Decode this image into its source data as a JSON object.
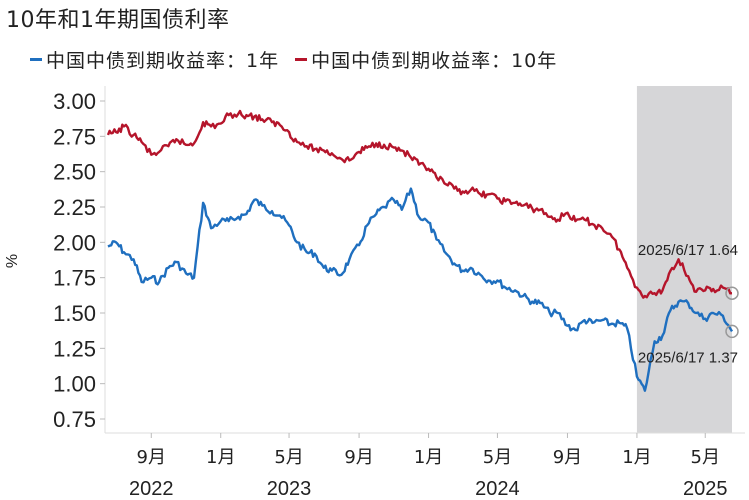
{
  "title": "10年和1年期国债利率",
  "legend": [
    {
      "label": "中国中债到期收益率：1年",
      "color": "#1f6fbf"
    },
    {
      "label": "中国中债到期收益率：10年",
      "color": "#b5152b"
    }
  ],
  "ylabel": "%",
  "shade_color": "#d6d6d8",
  "chart_data": {
    "type": "line",
    "title": "10年和1年期国债利率",
    "xlabel": "",
    "ylabel": "%",
    "ylim": [
      0.75,
      3.0
    ],
    "yticks": [
      "3.00",
      "2.75",
      "2.50",
      "2.25",
      "2.00",
      "1.75",
      "1.50",
      "1.25",
      "1.00",
      "0.75"
    ],
    "xticks": [
      {
        "label": "9月",
        "year": "2022",
        "date": "2022-09-01"
      },
      {
        "label": "1月",
        "year": "",
        "date": "2023-01-01"
      },
      {
        "label": "5月",
        "year": "2023",
        "date": "2023-05-01"
      },
      {
        "label": "9月",
        "year": "",
        "date": "2023-09-01"
      },
      {
        "label": "1月",
        "year": "",
        "date": "2024-01-01"
      },
      {
        "label": "5月",
        "year": "2024",
        "date": "2024-05-01"
      },
      {
        "label": "9月",
        "year": "",
        "date": "2024-09-01"
      },
      {
        "label": "1月",
        "year": "",
        "date": "2025-01-01"
      },
      {
        "label": "5月",
        "year": "2025",
        "date": "2025-05-01"
      }
    ],
    "x_range": [
      "2022-06-17",
      "2025-06-17"
    ],
    "shaded_region": [
      "2025-01-01",
      "2025-06-17"
    ],
    "grid": false,
    "legend_position": "top",
    "annotations": [
      {
        "text": "2025/6/17 1.64",
        "series": "中国中债到期收益率：10年",
        "date": "2025-06-17",
        "value": 1.64
      },
      {
        "text": "2025/6/17 1.37",
        "series": "中国中债到期收益率：1年",
        "date": "2025-06-17",
        "value": 1.37
      }
    ],
    "series": [
      {
        "name": "中国中债到期收益率：1年",
        "color": "#1f6fbf",
        "x": [
          "2022-06-17",
          "2022-07-01",
          "2022-07-15",
          "2022-08-01",
          "2022-08-15",
          "2022-09-01",
          "2022-09-15",
          "2022-10-01",
          "2022-10-15",
          "2022-11-01",
          "2022-11-15",
          "2022-12-01",
          "2022-12-15",
          "2023-01-01",
          "2023-01-15",
          "2023-02-01",
          "2023-02-15",
          "2023-03-01",
          "2023-03-15",
          "2023-04-01",
          "2023-04-15",
          "2023-05-01",
          "2023-05-15",
          "2023-06-01",
          "2023-06-15",
          "2023-07-01",
          "2023-07-15",
          "2023-08-01",
          "2023-08-15",
          "2023-09-01",
          "2023-09-15",
          "2023-10-01",
          "2023-10-15",
          "2023-11-01",
          "2023-11-15",
          "2023-12-01",
          "2023-12-15",
          "2024-01-01",
          "2024-01-15",
          "2024-02-01",
          "2024-02-15",
          "2024-03-01",
          "2024-03-15",
          "2024-04-01",
          "2024-04-15",
          "2024-05-01",
          "2024-05-15",
          "2024-06-01",
          "2024-06-15",
          "2024-07-01",
          "2024-07-15",
          "2024-08-01",
          "2024-08-15",
          "2024-09-01",
          "2024-09-15",
          "2024-10-01",
          "2024-10-15",
          "2024-11-01",
          "2024-11-15",
          "2024-12-01",
          "2024-12-15",
          "2025-01-01",
          "2025-01-15",
          "2025-02-01",
          "2025-02-15",
          "2025-03-01",
          "2025-03-15",
          "2025-04-01",
          "2025-04-15",
          "2025-05-01",
          "2025-05-15",
          "2025-06-01",
          "2025-06-17"
        ],
        "values": [
          1.97,
          2.0,
          1.93,
          1.88,
          1.72,
          1.75,
          1.72,
          1.82,
          1.86,
          1.78,
          1.75,
          2.28,
          2.1,
          2.15,
          2.15,
          2.18,
          2.2,
          2.3,
          2.26,
          2.22,
          2.19,
          2.12,
          2.0,
          1.93,
          1.92,
          1.82,
          1.8,
          1.77,
          1.88,
          1.98,
          2.12,
          2.2,
          2.25,
          2.3,
          2.23,
          2.38,
          2.18,
          2.14,
          2.02,
          1.92,
          1.85,
          1.8,
          1.82,
          1.77,
          1.73,
          1.73,
          1.68,
          1.66,
          1.62,
          1.58,
          1.57,
          1.5,
          1.5,
          1.41,
          1.38,
          1.45,
          1.43,
          1.45,
          1.42,
          1.43,
          1.39,
          1.05,
          0.95,
          1.3,
          1.34,
          1.52,
          1.58,
          1.57,
          1.5,
          1.46,
          1.5,
          1.48,
          1.37
        ]
      },
      {
        "name": "中国中债到期收益率：10年",
        "color": "#b5152b",
        "x": [
          "2022-06-17",
          "2022-07-01",
          "2022-07-15",
          "2022-08-01",
          "2022-08-15",
          "2022-09-01",
          "2022-09-15",
          "2022-10-01",
          "2022-10-15",
          "2022-11-01",
          "2022-11-15",
          "2022-12-01",
          "2022-12-15",
          "2023-01-01",
          "2023-01-15",
          "2023-02-01",
          "2023-02-15",
          "2023-03-01",
          "2023-03-15",
          "2023-04-01",
          "2023-04-15",
          "2023-05-01",
          "2023-05-15",
          "2023-06-01",
          "2023-06-15",
          "2023-07-01",
          "2023-07-15",
          "2023-08-01",
          "2023-08-15",
          "2023-09-01",
          "2023-09-15",
          "2023-10-01",
          "2023-10-15",
          "2023-11-01",
          "2023-11-15",
          "2023-12-01",
          "2023-12-15",
          "2024-01-01",
          "2024-01-15",
          "2024-02-01",
          "2024-02-15",
          "2024-03-01",
          "2024-03-15",
          "2024-04-01",
          "2024-04-15",
          "2024-05-01",
          "2024-05-15",
          "2024-06-01",
          "2024-06-15",
          "2024-07-01",
          "2024-07-15",
          "2024-08-01",
          "2024-08-15",
          "2024-09-01",
          "2024-09-15",
          "2024-10-01",
          "2024-10-15",
          "2024-11-01",
          "2024-11-15",
          "2024-12-01",
          "2024-12-15",
          "2025-01-01",
          "2025-01-15",
          "2025-02-01",
          "2025-02-15",
          "2025-03-01",
          "2025-03-15",
          "2025-04-01",
          "2025-04-15",
          "2025-05-01",
          "2025-05-15",
          "2025-06-01",
          "2025-06-17"
        ],
        "values": [
          2.76,
          2.78,
          2.82,
          2.76,
          2.71,
          2.62,
          2.64,
          2.68,
          2.73,
          2.69,
          2.7,
          2.85,
          2.82,
          2.84,
          2.9,
          2.91,
          2.9,
          2.89,
          2.87,
          2.85,
          2.83,
          2.78,
          2.71,
          2.68,
          2.66,
          2.65,
          2.63,
          2.59,
          2.58,
          2.64,
          2.67,
          2.7,
          2.69,
          2.67,
          2.65,
          2.6,
          2.55,
          2.52,
          2.46,
          2.41,
          2.38,
          2.36,
          2.37,
          2.34,
          2.34,
          2.31,
          2.29,
          2.28,
          2.26,
          2.24,
          2.23,
          2.18,
          2.16,
          2.21,
          2.15,
          2.16,
          2.13,
          2.1,
          2.06,
          1.95,
          1.82,
          1.68,
          1.62,
          1.64,
          1.66,
          1.8,
          1.88,
          1.76,
          1.65,
          1.66,
          1.67,
          1.68,
          1.64
        ]
      }
    ]
  }
}
